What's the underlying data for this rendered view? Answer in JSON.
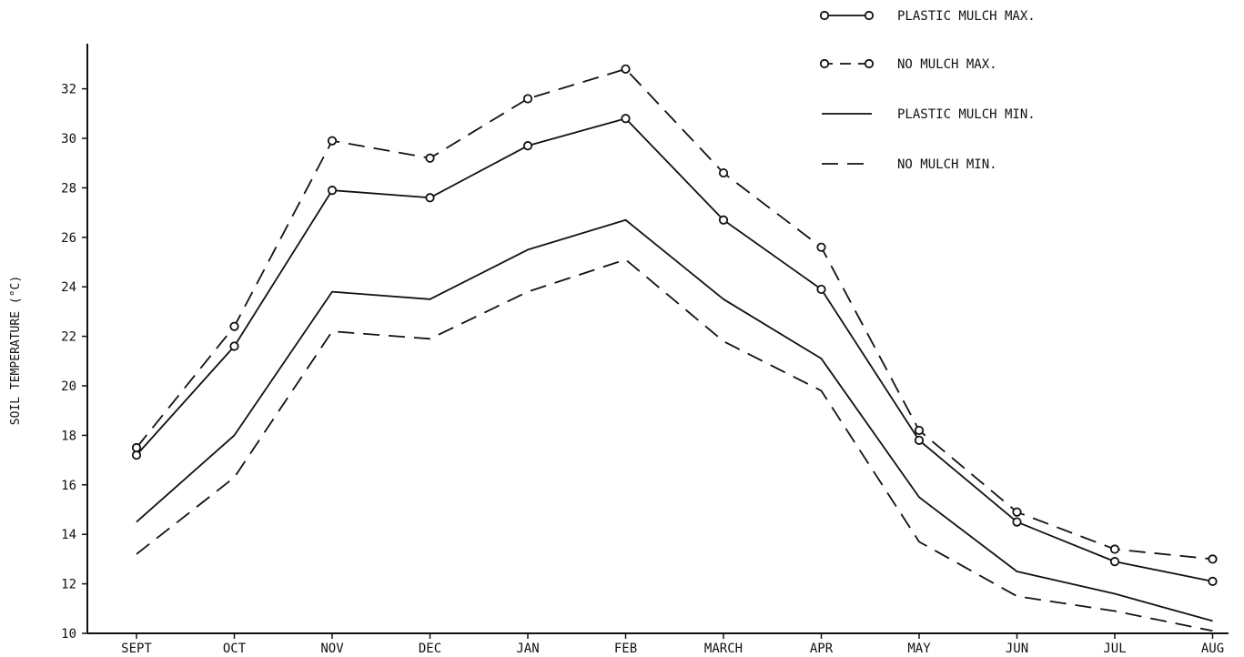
{
  "chart_data": {
    "type": "line",
    "title": "",
    "xlabel": "",
    "ylabel": "SOIL TEMPERATURE  (°C)",
    "ylim": [
      10,
      34
    ],
    "yticks": [
      10,
      12,
      14,
      16,
      18,
      20,
      22,
      24,
      26,
      28,
      30,
      32
    ],
    "categories": [
      "SEPT",
      "OCT",
      "NOV",
      "DEC",
      "JAN",
      "FEB",
      "MARCH",
      "APR",
      "MAY",
      "JUN",
      "JUL",
      "AUG"
    ],
    "grid": false,
    "legend_position": "top-right",
    "series": [
      {
        "name": "PLASTIC MULCH MAX.",
        "line": "solid",
        "markers": true,
        "values": [
          17.2,
          21.6,
          27.9,
          27.6,
          29.7,
          30.8,
          26.7,
          23.9,
          17.8,
          14.5,
          12.9,
          12.1
        ]
      },
      {
        "name": "NO MULCH MAX.",
        "line": "dashed",
        "markers": true,
        "values": [
          17.5,
          22.4,
          29.9,
          29.2,
          31.6,
          32.8,
          28.6,
          25.6,
          18.2,
          14.9,
          13.4,
          13.0
        ]
      },
      {
        "name": "PLASTIC MULCH MIN.",
        "line": "solid",
        "markers": false,
        "values": [
          14.5,
          18.0,
          23.8,
          23.5,
          25.5,
          26.7,
          23.5,
          21.1,
          15.5,
          12.5,
          11.6,
          10.5
        ]
      },
      {
        "name": "NO MULCH MIN.",
        "line": "dashed",
        "markers": false,
        "values": [
          13.2,
          16.3,
          22.2,
          21.9,
          23.8,
          25.1,
          21.8,
          19.8,
          13.7,
          11.5,
          10.9,
          10.1
        ]
      }
    ]
  }
}
